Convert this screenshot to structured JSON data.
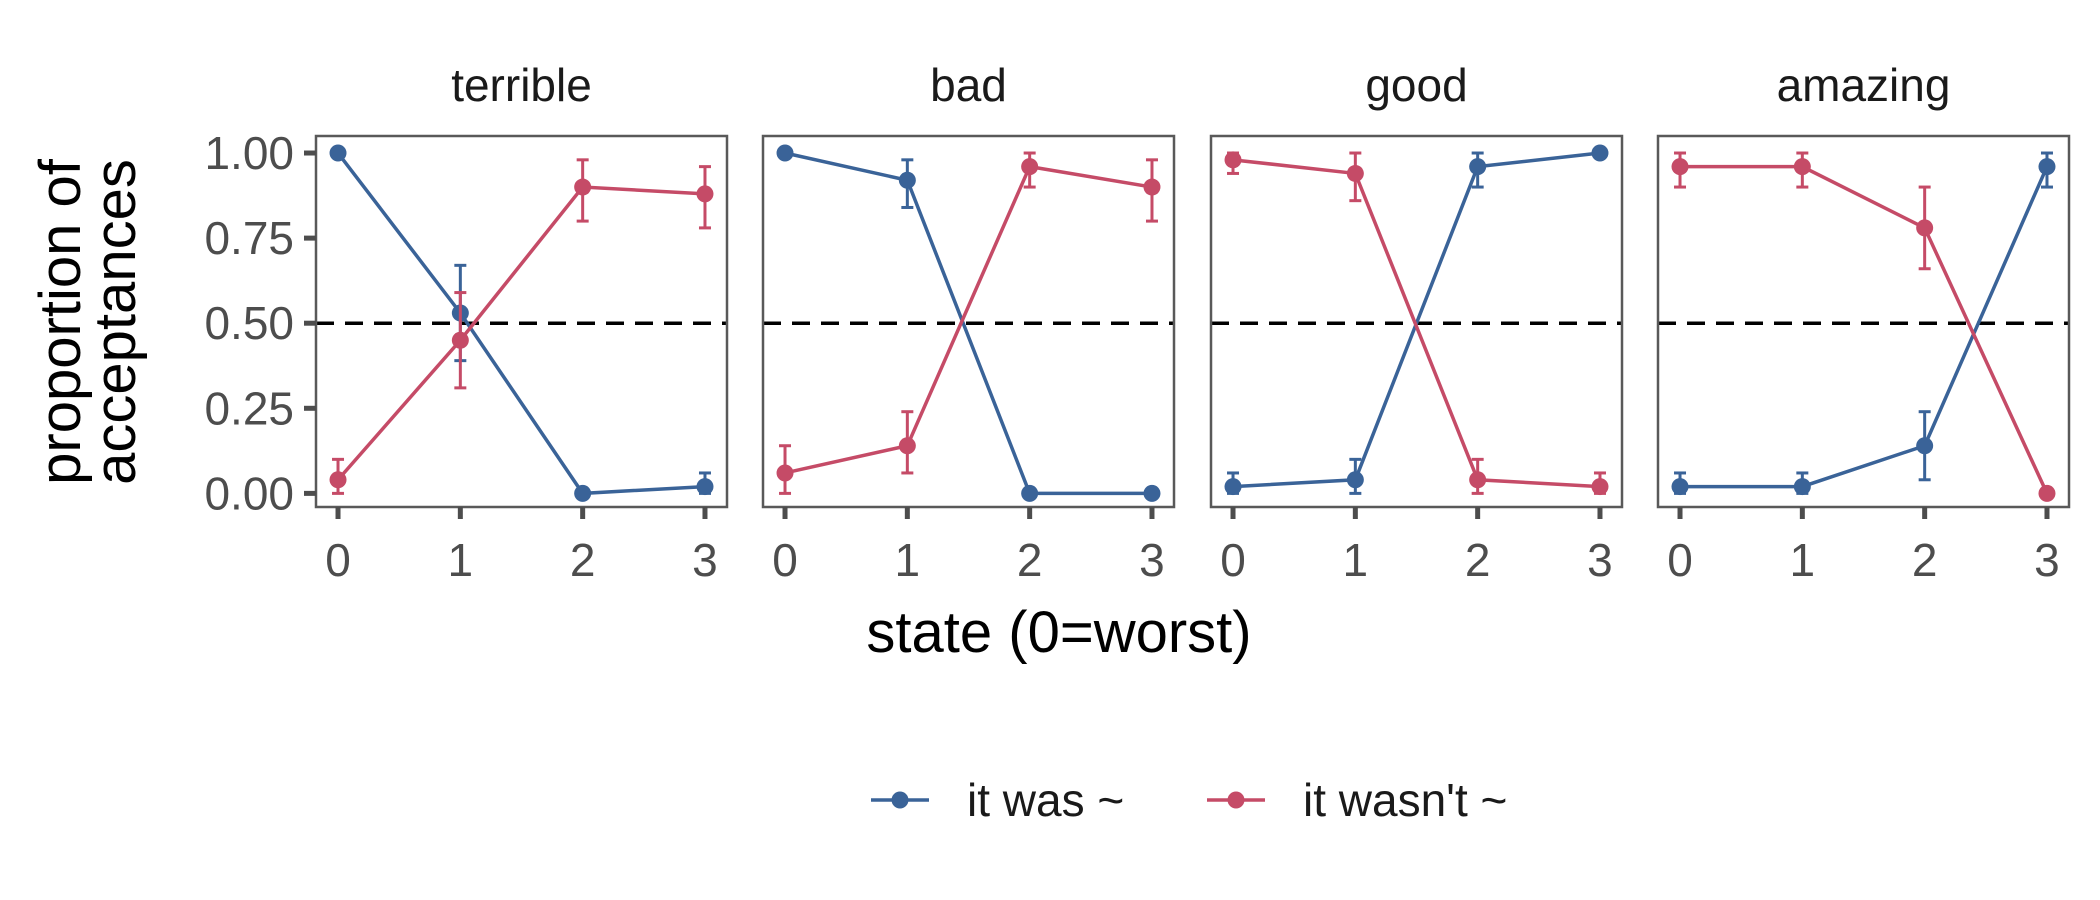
{
  "chart_data": {
    "type": "line",
    "xlabel": "state (0=worst)",
    "ylabel_lines": [
      "proportion of",
      "acceptances"
    ],
    "x": [
      0,
      1,
      2,
      3
    ],
    "x_tick_labels": [
      "0",
      "1",
      "2",
      "3"
    ],
    "y_ticks": [
      0,
      0.25,
      0.5,
      0.75,
      1
    ],
    "y_tick_labels": [
      "0.00",
      "0.25",
      "0.50",
      "0.75",
      "1.00"
    ],
    "ylim": [
      -0.04,
      1.05
    ],
    "xlim": [
      -0.18,
      3.18
    ],
    "reference_line": 0.5,
    "grid": false,
    "legend_position": "bottom",
    "series_styles": [
      {
        "name": "it was ~",
        "color": "#3a6398"
      },
      {
        "name": "it wasn't ~",
        "color": "#c54b67"
      }
    ],
    "facets": [
      {
        "title": "terrible",
        "series": [
          {
            "name": "it was ~",
            "values": [
              1.0,
              0.53,
              0.0,
              0.02
            ],
            "err_low": [
              1.0,
              0.39,
              0.0,
              0.0
            ],
            "err_high": [
              1.0,
              0.67,
              0.0,
              0.06
            ]
          },
          {
            "name": "it wasn't ~",
            "values": [
              0.04,
              0.45,
              0.9,
              0.88
            ],
            "err_low": [
              0.0,
              0.31,
              0.8,
              0.78
            ],
            "err_high": [
              0.1,
              0.59,
              0.98,
              0.96
            ]
          }
        ]
      },
      {
        "title": "bad",
        "series": [
          {
            "name": "it was ~",
            "values": [
              1.0,
              0.92,
              0.0,
              0.0
            ],
            "err_low": [
              1.0,
              0.84,
              0.0,
              0.0
            ],
            "err_high": [
              1.0,
              0.98,
              0.0,
              0.0
            ]
          },
          {
            "name": "it wasn't ~",
            "values": [
              0.06,
              0.14,
              0.96,
              0.9
            ],
            "err_low": [
              0.0,
              0.06,
              0.9,
              0.8
            ],
            "err_high": [
              0.14,
              0.24,
              1.0,
              0.98
            ]
          }
        ]
      },
      {
        "title": "good",
        "series": [
          {
            "name": "it was ~",
            "values": [
              0.02,
              0.04,
              0.96,
              1.0
            ],
            "err_low": [
              0.0,
              0.0,
              0.9,
              1.0
            ],
            "err_high": [
              0.06,
              0.1,
              1.0,
              1.0
            ]
          },
          {
            "name": "it wasn't ~",
            "values": [
              0.98,
              0.94,
              0.04,
              0.02
            ],
            "err_low": [
              0.94,
              0.86,
              0.0,
              0.0
            ],
            "err_high": [
              1.0,
              1.0,
              0.1,
              0.06
            ]
          }
        ]
      },
      {
        "title": "amazing",
        "series": [
          {
            "name": "it was ~",
            "values": [
              0.02,
              0.02,
              0.14,
              0.96
            ],
            "err_low": [
              0.0,
              0.0,
              0.04,
              0.9
            ],
            "err_high": [
              0.06,
              0.06,
              0.24,
              1.0
            ]
          },
          {
            "name": "it wasn't ~",
            "values": [
              0.96,
              0.96,
              0.78,
              0.0
            ],
            "err_low": [
              0.9,
              0.9,
              0.66,
              0.0
            ],
            "err_high": [
              1.0,
              1.0,
              0.9,
              0.0
            ]
          }
        ]
      }
    ],
    "legend": [
      {
        "label": "it was ~",
        "color": "#3a6398"
      },
      {
        "label": "it wasn't ~",
        "color": "#c54b67"
      }
    ]
  }
}
